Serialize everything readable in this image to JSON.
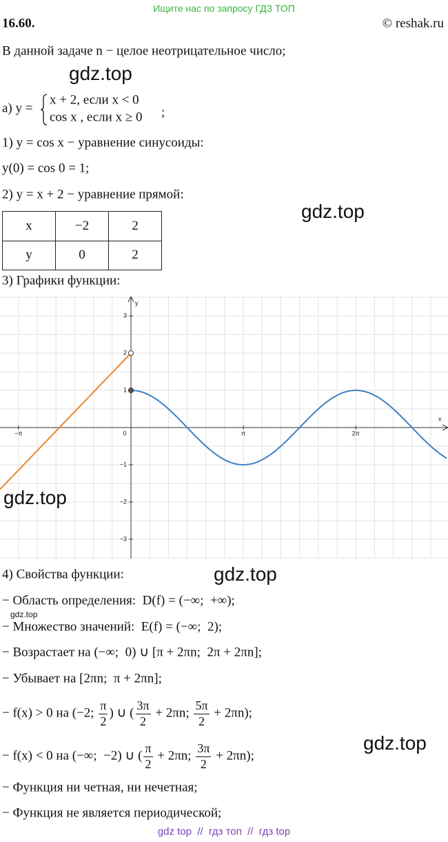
{
  "watermark_top": "Ищите нас по запросу ГДЗ ТОП",
  "header": {
    "number": "16.60.",
    "copyright": "© reshak.ru"
  },
  "intro": "В данной задаче n − целое неотрицательное число;",
  "system": {
    "lead": "а) y =",
    "cases": [
      "x + 2, если x < 0",
      "cos x , если x ≥ 0"
    ],
    "end": ";"
  },
  "steps": [
    "1) y = cos x − уравнение синусоиды:",
    "y(0) = cos 0 = 1;",
    "2) y = x + 2 − уравнение прямой:"
  ],
  "table": {
    "rows": [
      [
        "x",
        "−2",
        "2"
      ],
      [
        "y",
        "0",
        "2"
      ]
    ]
  },
  "graph_heading": "3) Графики функции:",
  "graph": {
    "x_label": "x",
    "y_label": "y",
    "xlim": [
      -3.66,
      8.86
    ],
    "ylim": [
      -3.52,
      3.52
    ],
    "xticks": [
      {
        "value": -3.14159,
        "label": "−π"
      },
      0,
      {
        "value": 3.14159,
        "label": "π"
      },
      {
        "value": 6.28319,
        "label": "2π"
      }
    ],
    "yticks": [
      3,
      2,
      1,
      {
        "value": -1,
        "label": "−1"
      },
      {
        "value": -2,
        "label": "−2"
      },
      {
        "value": -3,
        "label": "−3"
      }
    ],
    "grid": true,
    "points": [
      {
        "x": 0,
        "y": 2,
        "open": true
      },
      {
        "x": 0,
        "y": 1,
        "open": false
      }
    ],
    "colors": {
      "line": "#e8872f",
      "cos": "#3d7fc4"
    }
  },
  "props_heading": "4) Свойства функции:",
  "props": [
    {
      "parts": [
        "− Область определения:  D(f) = (−∞;  +∞);"
      ]
    },
    {
      "parts": [
        "− Множество значений:  E(f) = (−∞;  2);"
      ]
    },
    {
      "parts": [
        "− Возрастает на (−∞;  0) ∪ [π + 2πn;  2π + 2πn];"
      ]
    },
    {
      "parts": [
        "− Убывает на [2πn;  π + 2πn];"
      ]
    },
    {
      "parts": [
        "− f(x) > 0 на (−2; ",
        {
          "num": "π",
          "den": "2"
        },
        ") ∪ (",
        {
          "num": "3π",
          "den": "2"
        },
        " + 2πn; ",
        {
          "num": "5π",
          "den": "2"
        },
        " + 2πn);"
      ]
    },
    {
      "parts": [
        "− f(x) < 0 на (−∞;  −2) ∪ (",
        {
          "num": "π",
          "den": "2"
        },
        " + 2πn; ",
        {
          "num": "3π",
          "den": "2"
        },
        " + 2πn);"
      ]
    },
    {
      "parts": [
        "− Функция ни четная, ни нечетная;"
      ]
    },
    {
      "parts": [
        "− Функция не является периодической;"
      ]
    }
  ],
  "watermarks": [
    "gdz.top",
    "gdz.top",
    "gdz.top",
    "gdz.top",
    "gdz.top",
    "gdz.top"
  ],
  "footer": "gdz top  //  гдз топ  //  гдз top"
}
